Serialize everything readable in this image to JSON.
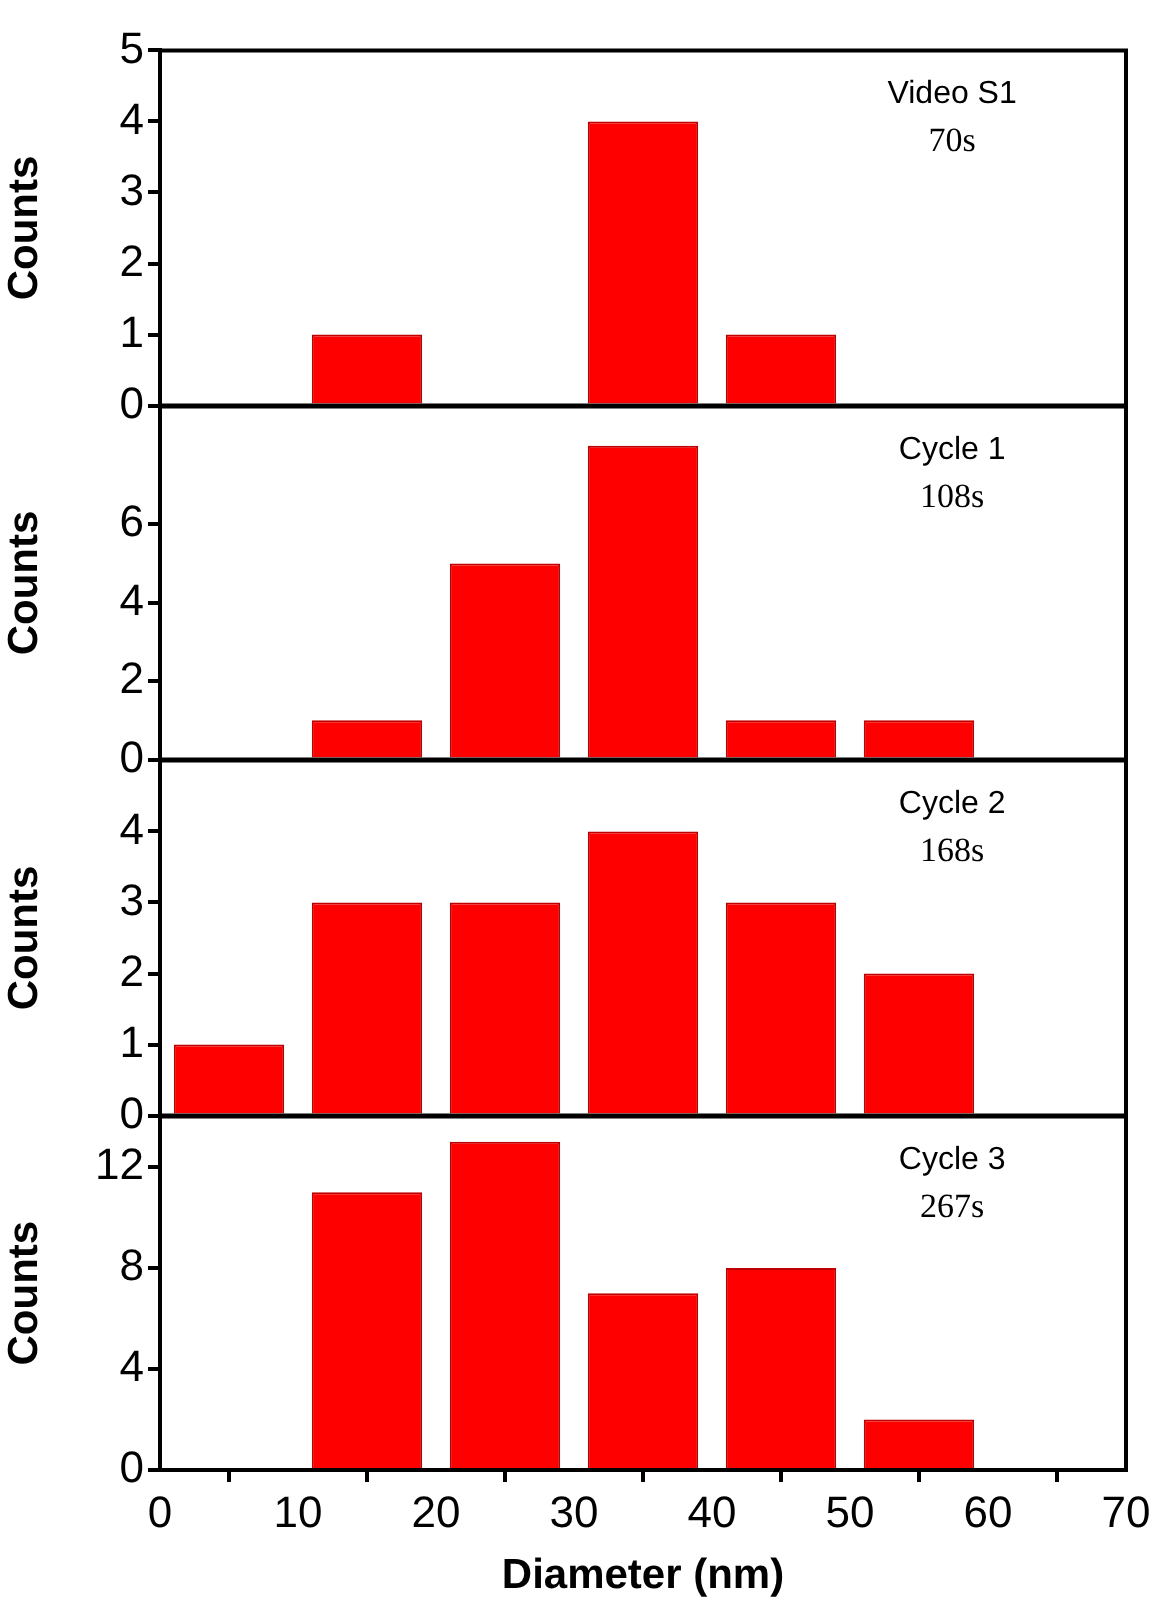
{
  "chart_data": [
    {
      "type": "histogram",
      "bins": [
        0,
        10,
        20,
        30,
        40,
        50,
        60,
        70
      ],
      "values": [
        0,
        1,
        0,
        4,
        1,
        0,
        0
      ],
      "color": "#ff0000",
      "ylabel": "Counts",
      "ylim": [
        0,
        5
      ],
      "yticks": [
        0,
        1,
        2,
        3,
        4,
        5
      ],
      "xlim": [
        0,
        70
      ],
      "tick_labels": "y",
      "annotations": [
        "Video S1",
        "70s"
      ]
    },
    {
      "type": "histogram",
      "bins": [
        0,
        10,
        20,
        30,
        40,
        50,
        60,
        70
      ],
      "values": [
        0,
        1,
        5,
        8,
        1,
        1,
        0
      ],
      "color": "#ff0000",
      "ylabel": "Counts",
      "ylim": [
        0,
        9
      ],
      "yticks": [
        0,
        2,
        4,
        6
      ],
      "xlim": [
        0,
        70
      ],
      "tick_labels": "y",
      "annotations": [
        "Cycle 1",
        "108s"
      ]
    },
    {
      "type": "histogram",
      "bins": [
        0,
        10,
        20,
        30,
        40,
        50,
        60,
        70
      ],
      "values": [
        1,
        3,
        3,
        4,
        3,
        2,
        0
      ],
      "color": "#ff0000",
      "ylabel": "Counts",
      "ylim": [
        0,
        5
      ],
      "yticks": [
        0,
        1,
        2,
        3,
        4
      ],
      "xlim": [
        0,
        70
      ],
      "tick_labels": "y",
      "annotations": [
        "Cycle 2",
        "168s"
      ]
    },
    {
      "type": "histogram",
      "bins": [
        0,
        10,
        20,
        30,
        40,
        50,
        60,
        70
      ],
      "values": [
        0,
        11,
        13,
        7,
        8,
        2,
        0
      ],
      "color": "#ff0000",
      "ylabel": "Counts",
      "xlabel": "Diameter (nm)",
      "ylim": [
        0,
        14
      ],
      "yticks": [
        0,
        4,
        8,
        12
      ],
      "xlim": [
        0,
        70
      ],
      "xticks": [
        0,
        10,
        20,
        30,
        40,
        50,
        60,
        70
      ],
      "annotations": [
        "Cycle 3",
        "267s"
      ]
    }
  ]
}
